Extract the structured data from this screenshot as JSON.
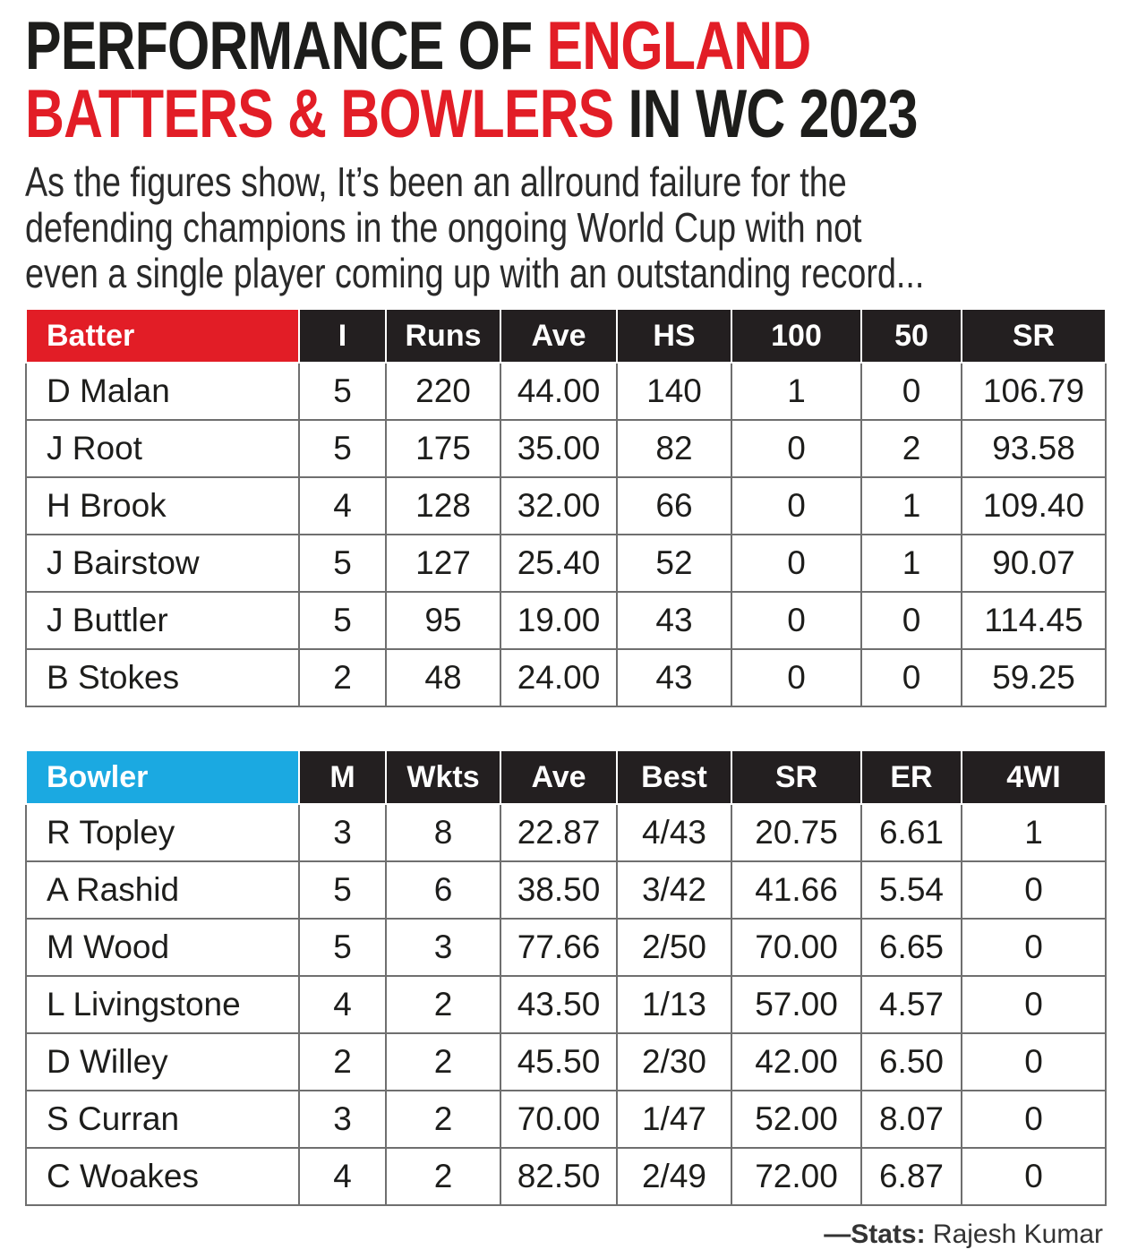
{
  "title": {
    "line1_black": "PERFORMANCE OF ",
    "line1_red": "ENGLAND",
    "line2_red": "BATTERS & BOWLERS",
    "line2_black": " IN WC 2023"
  },
  "intro": [
    "As the figures show, It’s been an allround failure for the",
    "defending champions in the ongoing World Cup with not",
    "even a single player coming up with an outstanding record..."
  ],
  "colors": {
    "accent_red": "#e21d26",
    "accent_blue": "#1ba9e1",
    "header_dark": "#231f20"
  },
  "chart_data": [
    {
      "type": "table",
      "header_color": "#e21d26",
      "columns": [
        "Batter",
        "I",
        "Runs",
        "Ave",
        "HS",
        "100",
        "50",
        "SR"
      ],
      "rows": [
        [
          "D Malan",
          "5",
          "220",
          "44.00",
          "140",
          "1",
          "0",
          "106.79"
        ],
        [
          "J Root",
          "5",
          "175",
          "35.00",
          "82",
          "0",
          "2",
          "93.58"
        ],
        [
          "H Brook",
          "4",
          "128",
          "32.00",
          "66",
          "0",
          "1",
          "109.40"
        ],
        [
          "J Bairstow",
          "5",
          "127",
          "25.40",
          "52",
          "0",
          "1",
          "90.07"
        ],
        [
          "J Buttler",
          "5",
          "95",
          "19.00",
          "43",
          "0",
          "0",
          "114.45"
        ],
        [
          "B Stokes",
          "2",
          "48",
          "24.00",
          "43",
          "0",
          "0",
          "59.25"
        ]
      ]
    },
    {
      "type": "table",
      "header_color": "#1ba9e1",
      "columns": [
        "Bowler",
        "M",
        "Wkts",
        "Ave",
        "Best",
        "SR",
        "ER",
        "4WI"
      ],
      "rows": [
        [
          "R Topley",
          "3",
          "8",
          "22.87",
          "4/43",
          "20.75",
          "6.61",
          "1"
        ],
        [
          "A Rashid",
          "5",
          "6",
          "38.50",
          "3/42",
          "41.66",
          "5.54",
          "0"
        ],
        [
          "M Wood",
          "5",
          "3",
          "77.66",
          "2/50",
          "70.00",
          "6.65",
          "0"
        ],
        [
          "L Livingstone",
          "4",
          "2",
          "43.50",
          "1/13",
          "57.00",
          "4.57",
          "0"
        ],
        [
          "D Willey",
          "2",
          "2",
          "45.50",
          "2/30",
          "42.00",
          "6.50",
          "0"
        ],
        [
          "S Curran",
          "3",
          "2",
          "70.00",
          "1/47",
          "52.00",
          "8.07",
          "0"
        ],
        [
          "C Woakes",
          "4",
          "2",
          "82.50",
          "2/49",
          "72.00",
          "6.87",
          "0"
        ]
      ]
    }
  ],
  "credit": {
    "label": "—Stats:",
    "name": " Rajesh Kumar"
  }
}
